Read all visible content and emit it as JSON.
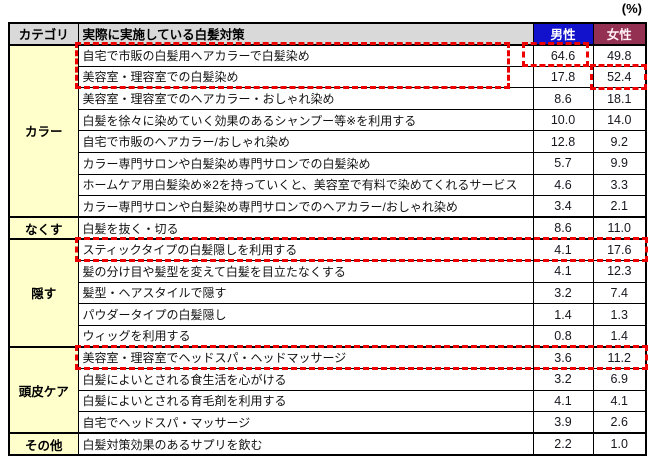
{
  "chart_data": {
    "type": "table",
    "unit_label": "(%)",
    "headers": {
      "category": "カテゴリ",
      "measure": "実際に実施している白髪対策",
      "male": "男性",
      "female": "女性"
    },
    "groups": [
      {
        "category": "カラー",
        "rows": [
          {
            "label": "自宅で市販の白髪用ヘアカラーで白髪染め",
            "male": "64.6",
            "female": "49.8"
          },
          {
            "label": "美容室・理容室での白髪染め",
            "male": "17.8",
            "female": "52.4"
          },
          {
            "label": "美容室・理容室でのヘアカラー・おしゃれ染め",
            "male": "8.6",
            "female": "18.1"
          },
          {
            "label": "白髪を徐々に染めていく効果のあるシャンプー等※を利用する",
            "male": "10.0",
            "female": "14.0"
          },
          {
            "label": "自宅で市販のヘアカラー/おしゃれ染め",
            "male": "12.8",
            "female": "9.2"
          },
          {
            "label": "カラー専門サロンや白髪染め専門サロンでの白髪染め",
            "male": "5.7",
            "female": "9.9"
          },
          {
            "label": "ホームケア用白髪染め※2を持っていくと、美容室で有料で染めてくれるサービス",
            "male": "4.6",
            "female": "3.3"
          },
          {
            "label": "カラー専門サロンや白髪染め専門サロンでのヘアカラー/おしゃれ染め",
            "male": "3.4",
            "female": "2.1"
          }
        ]
      },
      {
        "category": "なくす",
        "rows": [
          {
            "label": "白髪を抜く・切る",
            "male": "8.6",
            "female": "11.0"
          }
        ]
      },
      {
        "category": "隠す",
        "rows": [
          {
            "label": "スティックタイプの白髪隠しを利用する",
            "male": "4.1",
            "female": "17.6"
          },
          {
            "label": "髪の分け目や髪型を変えて白髪を目立たなくする",
            "male": "4.1",
            "female": "12.3"
          },
          {
            "label": "髪型・ヘアスタイルで隠す",
            "male": "3.2",
            "female": "7.4"
          },
          {
            "label": "パウダータイプの白髪隠し",
            "male": "1.4",
            "female": "1.3"
          },
          {
            "label": "ウィッグを利用する",
            "male": "0.8",
            "female": "1.4"
          }
        ]
      },
      {
        "category": "頭皮ケア",
        "rows": [
          {
            "label": "美容室・理容室でヘッドスパ・ヘッドマッサージ",
            "male": "3.6",
            "female": "11.2"
          },
          {
            "label": "白髪によいとされる食生活を心がける",
            "male": "3.2",
            "female": "6.9"
          },
          {
            "label": "白髪によいとされる育毛剤を利用する",
            "male": "4.1",
            "female": "4.1"
          },
          {
            "label": "自宅でヘッドスパ・マッサージ",
            "male": "3.9",
            "female": "2.6"
          }
        ]
      },
      {
        "category": "その他",
        "rows": [
          {
            "label": "白髪対策効果のあるサプリを飲む",
            "male": "2.2",
            "female": "1.0"
          }
        ]
      }
    ]
  },
  "annotations": {
    "color": "#EE0000",
    "style": "red-dashed-box",
    "boxed_row_labels": [
      "自宅で市販の白髪用ヘアカラーで白髪染め",
      "美容室・理容室での白髪染め"
    ],
    "boxed_values": [
      {
        "label": "自宅で市販の白髪用ヘアカラーで白髪染め",
        "column": "男性",
        "value": "64.6"
      },
      {
        "label": "美容室・理容室での白髪染め",
        "column": "女性",
        "value": "52.4"
      }
    ],
    "boxed_full_rows": [
      "スティックタイプの白髪隠しを利用する",
      "美容室・理容室でヘッドスパ・ヘッドマッサージ"
    ]
  },
  "colors": {
    "male_header_bg": "#1212CC",
    "female_header_bg": "#943052",
    "category_bg": "#FFFFCC",
    "header_bg": "#D9D9D9",
    "border": "#000000"
  }
}
